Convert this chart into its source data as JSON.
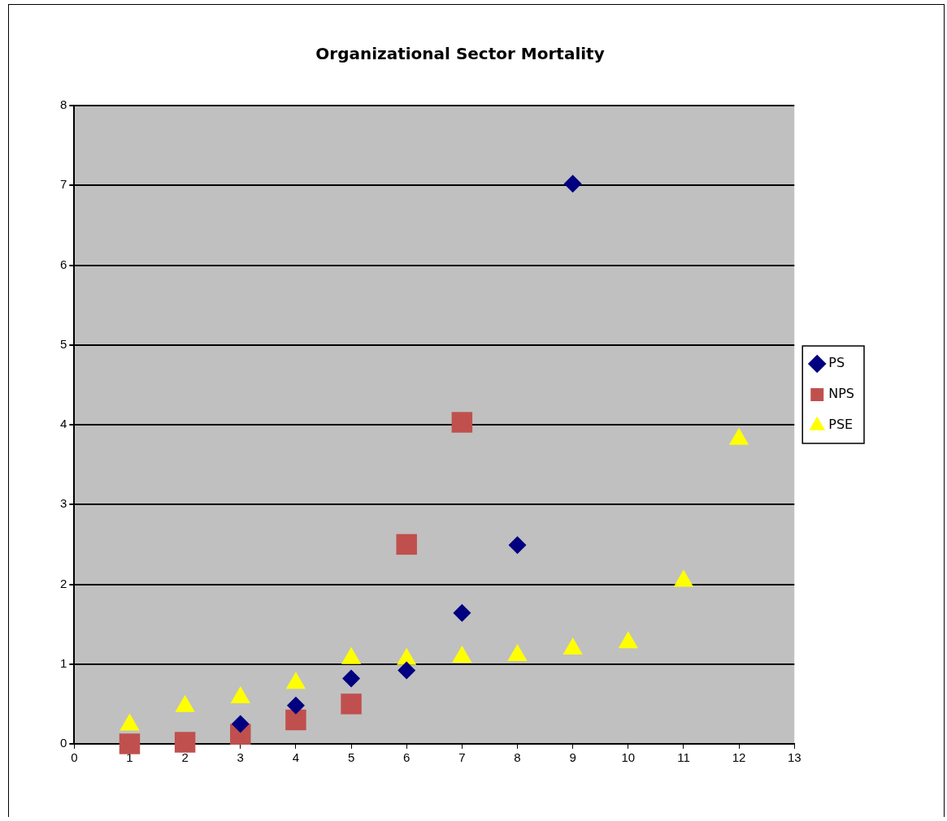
{
  "chart_data": {
    "type": "scatter",
    "title": "Organizational Sector Mortality",
    "x": [
      1,
      2,
      3,
      4,
      5,
      6,
      7,
      8,
      9,
      10,
      11,
      12
    ],
    "series": [
      {
        "name": "PS",
        "color": "#000080",
        "marker": "diamond",
        "values": [
          null,
          null,
          0.25,
          0.48,
          0.82,
          0.92,
          1.64,
          2.49,
          7.02,
          null,
          null,
          null
        ]
      },
      {
        "name": "NPS",
        "color": "#c0504d",
        "marker": "square",
        "values": [
          0,
          0.02,
          0.12,
          0.3,
          0.5,
          2.5,
          4.03,
          null,
          null,
          null,
          null,
          null
        ]
      },
      {
        "name": "PSE",
        "color": "#ffff00",
        "marker": "triangle",
        "values": [
          0.24,
          0.47,
          0.58,
          0.76,
          1.07,
          1.06,
          1.09,
          1.11,
          1.19,
          1.27,
          2.04,
          3.82
        ]
      }
    ],
    "xlim": [
      0,
      13
    ],
    "xticks": [
      0,
      1,
      2,
      3,
      4,
      5,
      6,
      7,
      8,
      9,
      10,
      11,
      12,
      13
    ],
    "ylim": [
      0,
      8
    ],
    "yticks": [
      0,
      1,
      2,
      3,
      4,
      5,
      6,
      7,
      8
    ],
    "grid": "y",
    "legend": "right"
  }
}
